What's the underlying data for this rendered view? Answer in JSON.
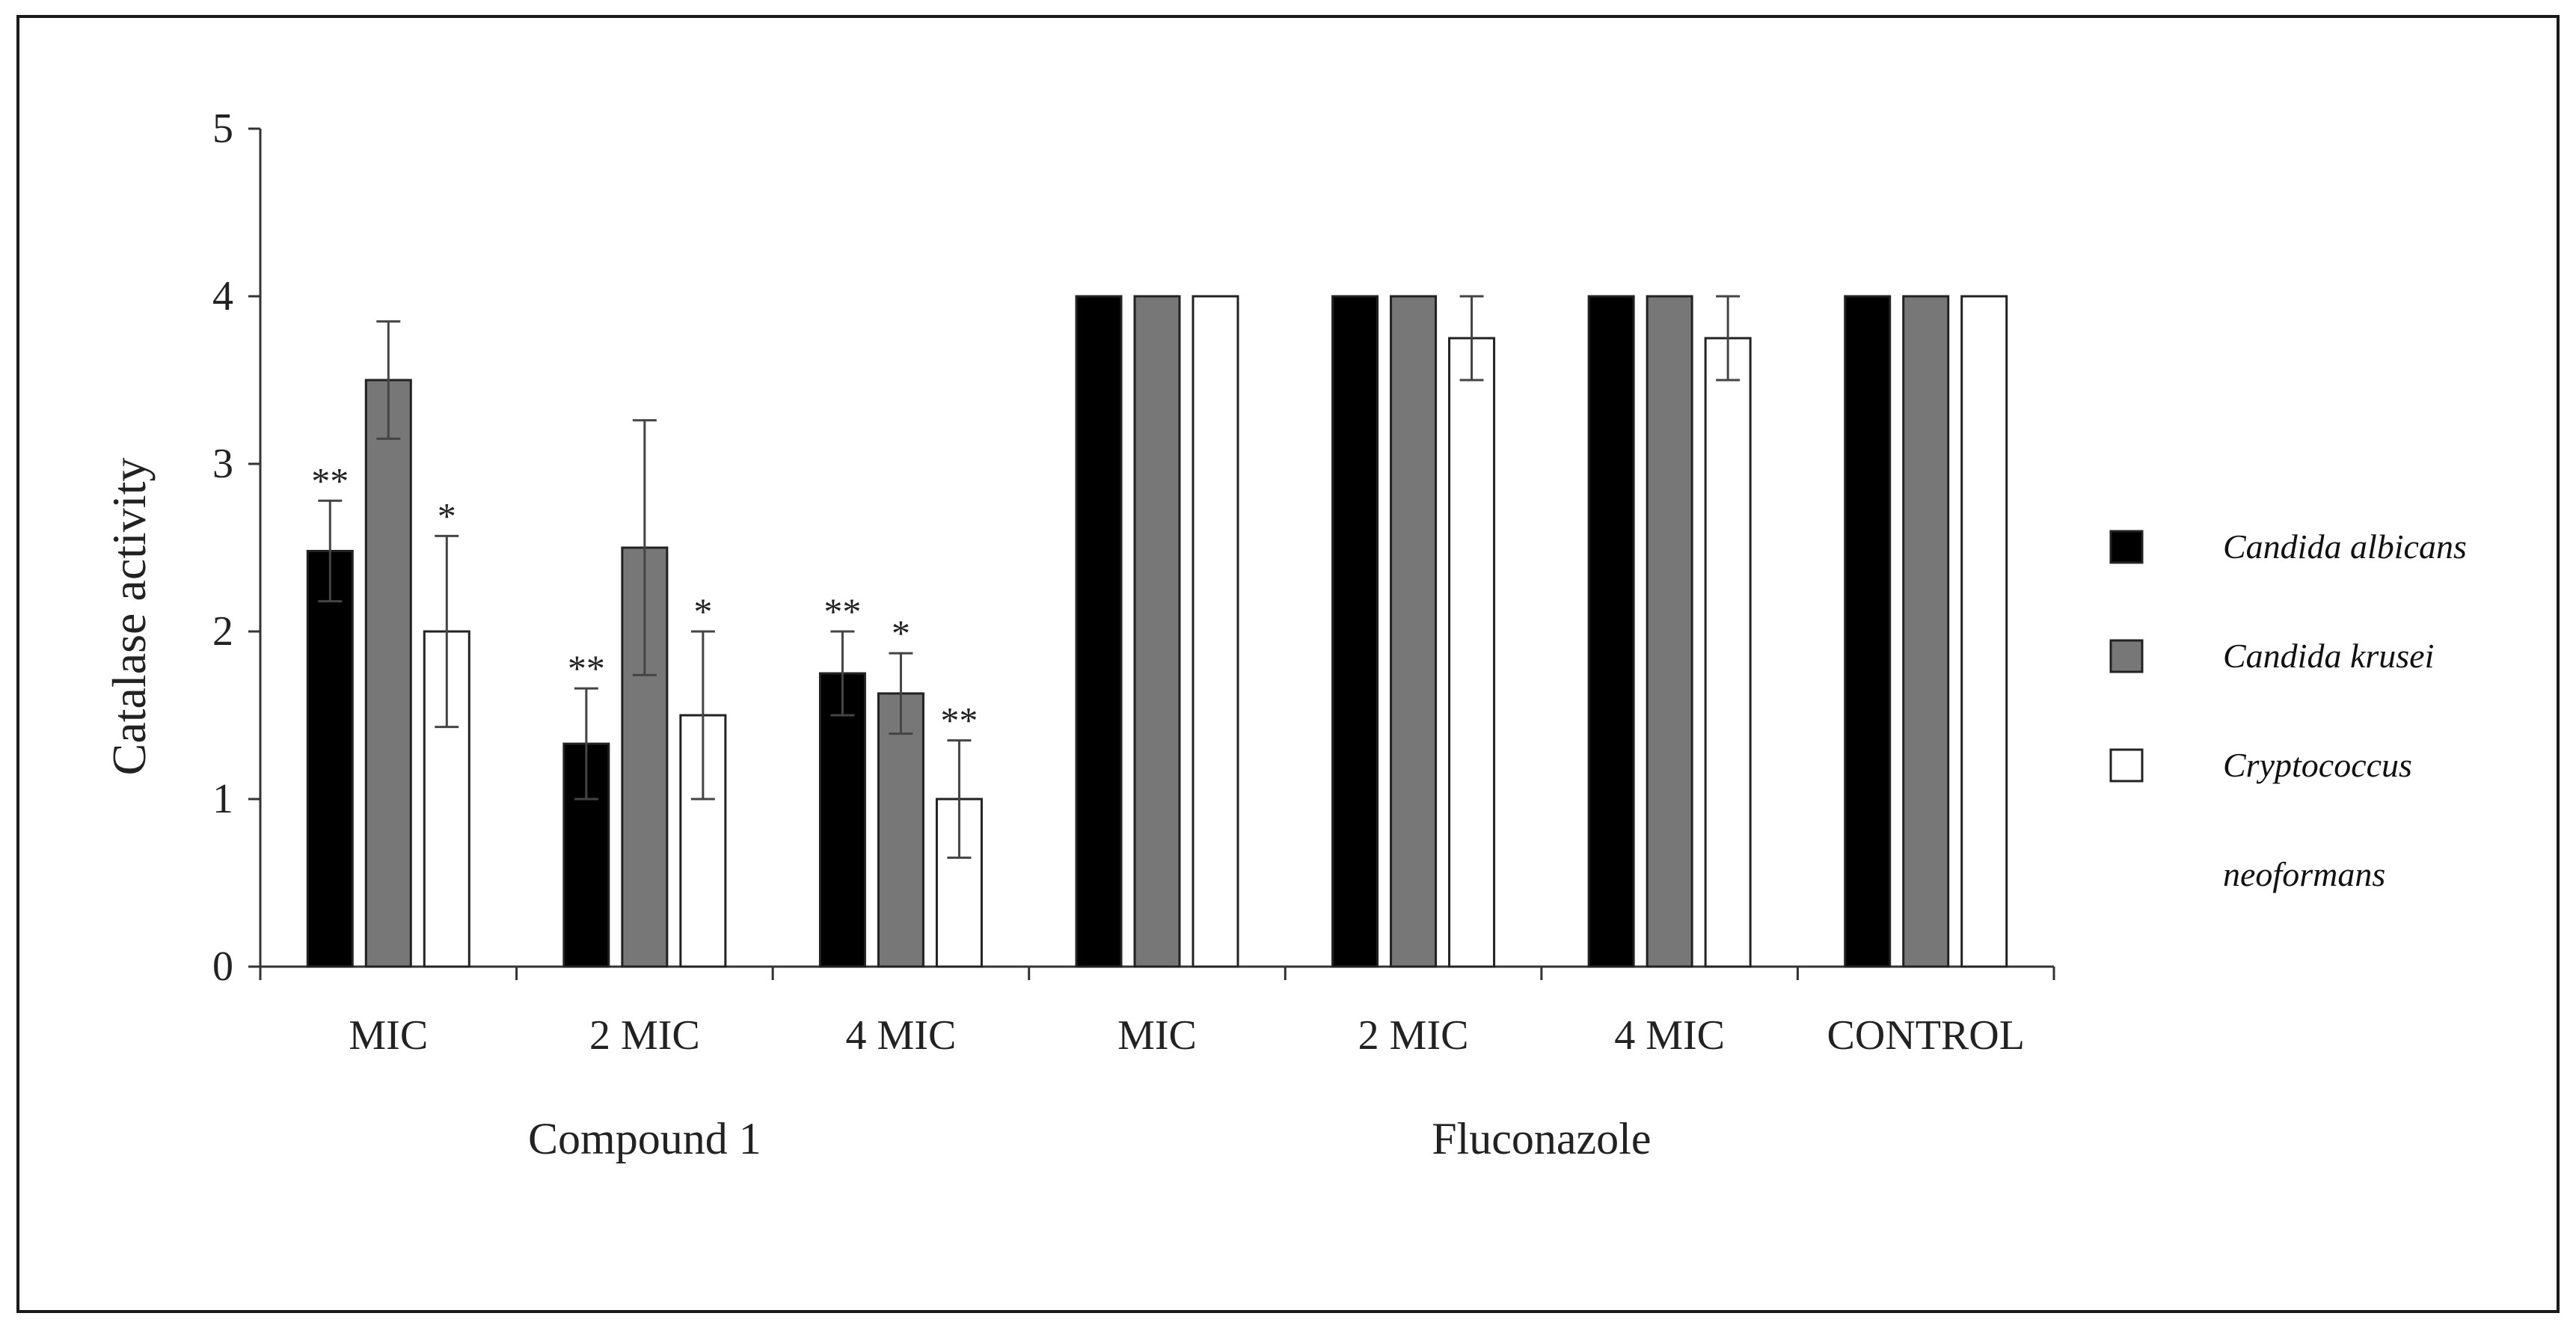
{
  "chart_data": {
    "type": "bar",
    "ylabel": "Catalase activity",
    "ylim": [
      0,
      5
    ],
    "yticks": [
      0,
      1,
      2,
      3,
      4,
      5
    ],
    "grid": false,
    "legend_position": "right",
    "groups": [
      {
        "label": "Compound 1",
        "categories": [
          "MIC",
          "2 MIC",
          "4 MIC"
        ]
      },
      {
        "label": "Fluconazole",
        "categories": [
          "MIC",
          "2 MIC",
          "4 MIC",
          "CONTROL"
        ]
      }
    ],
    "categories": [
      "MIC",
      "2 MIC",
      "4 MIC",
      "MIC",
      "2 MIC",
      "4 MIC",
      "CONTROL"
    ],
    "series": [
      {
        "name": "Candida albicans",
        "color": "#000000",
        "values": [
          2.48,
          1.33,
          1.75,
          4.0,
          4.0,
          4.0,
          4.0
        ],
        "errors": [
          0.3,
          0.33,
          0.25,
          0,
          0,
          0,
          0
        ],
        "significance": [
          "**",
          "**",
          "**",
          "",
          "",
          "",
          ""
        ]
      },
      {
        "name": "Candida krusei",
        "color": "#777777",
        "values": [
          3.5,
          2.5,
          1.63,
          4.0,
          4.0,
          4.0,
          4.0
        ],
        "errors": [
          0.35,
          0.76,
          0.24,
          0,
          0,
          0,
          0
        ],
        "significance": [
          "",
          "",
          "*",
          "",
          "",
          "",
          ""
        ]
      },
      {
        "name": "Cryptococcus neoformans",
        "legend_lines": [
          "Cryptococcus",
          "neoformans"
        ],
        "color": "#ffffff",
        "values": [
          2.0,
          1.5,
          1.0,
          4.0,
          3.75,
          3.75,
          4.0
        ],
        "errors": [
          0.57,
          0.5,
          0.35,
          0,
          0.25,
          0.25,
          0
        ],
        "significance": [
          "*",
          "*",
          "**",
          "",
          "",
          "",
          ""
        ]
      }
    ]
  }
}
